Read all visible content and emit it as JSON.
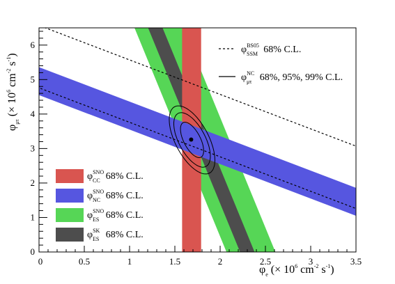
{
  "chart_data": {
    "type": "band_overlay",
    "xlim": [
      0,
      3.5
    ],
    "ylim": [
      0,
      6.5
    ],
    "x_ticks": [
      {
        "value": 0,
        "label": "0"
      },
      {
        "value": 0.5,
        "label": "0.5"
      },
      {
        "value": 1,
        "label": "1"
      },
      {
        "value": 1.5,
        "label": "1.5"
      },
      {
        "value": 2,
        "label": "2"
      },
      {
        "value": 2.5,
        "label": "2.5"
      },
      {
        "value": 3,
        "label": "3"
      },
      {
        "value": 3.5,
        "label": "3.5"
      }
    ],
    "y_ticks": [
      {
        "value": 0,
        "label": "0"
      },
      {
        "value": 1,
        "label": "1"
      },
      {
        "value": 2,
        "label": "2"
      },
      {
        "value": 3,
        "label": "3"
      },
      {
        "value": 4,
        "label": "4"
      },
      {
        "value": 5,
        "label": "5"
      },
      {
        "value": 6,
        "label": "6"
      }
    ],
    "x_axis": {
      "sym": "φ",
      "sub": "e",
      "unit": "(× 10",
      "exp": "6",
      "unit2": " cm",
      "exp2": "-2",
      "unit3": " s",
      "exp3": "-1",
      "close": ")"
    },
    "y_axis": {
      "sym": "φ",
      "sub": "μτ",
      "unit": "(× 10",
      "exp": "6",
      "unit2": " cm",
      "exp2": "-2",
      "unit3": " s",
      "exp3": "-1",
      "close": ")"
    },
    "bands": [
      {
        "id": "es-sno",
        "color": "#56d656",
        "kind": "line",
        "slope": -6.4,
        "x_intercept_low": 2.07,
        "x_intercept_high": 2.61
      },
      {
        "id": "es-sk",
        "color": "#4d4d4d",
        "kind": "line",
        "slope": -6.4,
        "x_intercept_low": 2.22,
        "x_intercept_high": 2.38
      },
      {
        "id": "cc-sno",
        "color": "#d95550",
        "kind": "vertical",
        "x_low": 1.58,
        "x_high": 1.79
      },
      {
        "id": "nc-sno",
        "color": "#5656e0",
        "kind": "line",
        "slope": -1.0,
        "y_intercept_low": 4.55,
        "y_intercept_high": 5.36
      }
    ],
    "ssm_lines": [
      {
        "id": "ssm-lower",
        "y_intercept": 4.76,
        "slope": -1.0
      },
      {
        "id": "ssm-upper",
        "y_intercept": 6.57,
        "slope": -1.0
      }
    ],
    "best_fit": {
      "x": 1.68,
      "y": 3.26
    },
    "contours": [
      {
        "level": "68%",
        "cx": 1.69,
        "cy": 3.25,
        "a": 0.52,
        "b": 0.1,
        "angle_deg": -81
      },
      {
        "level": "95%",
        "cx": 1.69,
        "cy": 3.25,
        "a": 0.8,
        "b": 0.16,
        "angle_deg": -81
      },
      {
        "level": "99%",
        "cx": 1.69,
        "cy": 3.25,
        "a": 1.0,
        "b": 0.2,
        "angle_deg": -81
      }
    ],
    "legend_right": [
      {
        "id": "ssm",
        "style": "dashed",
        "sym": "φ",
        "sub": "SSM",
        "sup": "BS05",
        "text": "68% C.L."
      },
      {
        "id": "contour",
        "style": "solid",
        "sym": "φ",
        "sub": "μτ",
        "sup": "NC",
        "text": "68%, 95%, 99% C.L."
      }
    ],
    "legend_left": [
      {
        "id": "cc",
        "color": "#d95550",
        "sym": "φ",
        "sub": "CC",
        "sup": "SNO",
        "text": "68% C.L."
      },
      {
        "id": "nc",
        "color": "#5656e0",
        "sym": "φ",
        "sub": "NC",
        "sup": "SNO",
        "text": "68% C.L."
      },
      {
        "id": "es",
        "color": "#56d656",
        "sym": "φ",
        "sub": "ES",
        "sup": "SNO",
        "text": "68% C.L."
      },
      {
        "id": "essk",
        "color": "#4d4d4d",
        "sym": "φ",
        "sub": "ES",
        "sup": "SK",
        "text": "68% C.L."
      }
    ]
  }
}
